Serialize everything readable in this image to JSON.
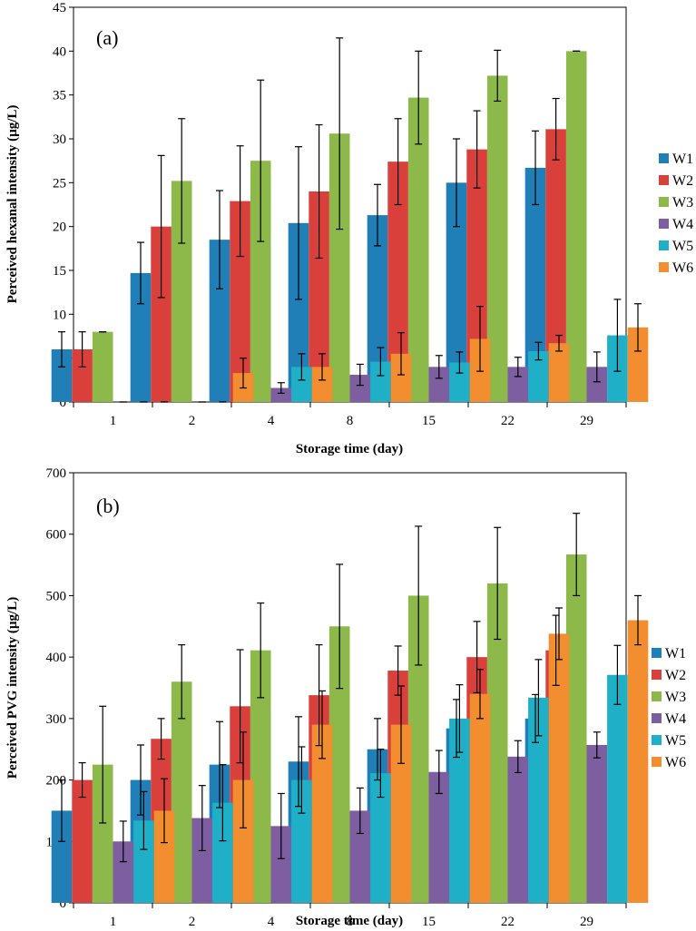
{
  "colors": {
    "W1": "#1f7fb6",
    "W2": "#d9403b",
    "W3": "#8db84a",
    "W4": "#7d5ea0",
    "W5": "#1fb0c7",
    "W6": "#f28e30"
  },
  "chart_data": [
    {
      "type": "bar",
      "panel_label": "(a)",
      "xlabel": "Storage time (day)",
      "ylabel": "Perceived  hexanal intensity (µg/L)",
      "ylim": [
        0,
        45
      ],
      "yticks": [
        0,
        5,
        10,
        15,
        20,
        25,
        30,
        35,
        40,
        45
      ],
      "categories": [
        "1",
        "2",
        "4",
        "8",
        "15",
        "22",
        "29"
      ],
      "legend_position": "right",
      "series": [
        {
          "name": "W1",
          "values": [
            6,
            14.7,
            18.5,
            20.4,
            21.3,
            25,
            26.7
          ],
          "errors": [
            2,
            3.5,
            5.6,
            8.7,
            3.5,
            5,
            4.2
          ]
        },
        {
          "name": "W2",
          "values": [
            6,
            20,
            22.9,
            24,
            27.4,
            28.8,
            31.1
          ],
          "errors": [
            2,
            8.1,
            6.3,
            7.6,
            4.9,
            4.4,
            3.5
          ]
        },
        {
          "name": "W3",
          "values": [
            8,
            25.2,
            27.5,
            30.6,
            34.7,
            37.2,
            40
          ],
          "errors": [
            0,
            7.1,
            9.2,
            10.9,
            5.3,
            2.9,
            0
          ]
        },
        {
          "name": "W4",
          "values": [
            0,
            0,
            1.6,
            3.1,
            4,
            4,
            4
          ],
          "errors": [
            0,
            0,
            0.6,
            1.2,
            1.3,
            1.1,
            1.7
          ]
        },
        {
          "name": "W5",
          "values": [
            0,
            0,
            4,
            4.6,
            4.5,
            5.8,
            7.6
          ],
          "errors": [
            0,
            0,
            1.5,
            1.6,
            1.2,
            1,
            4.1
          ]
        },
        {
          "name": "W6",
          "values": [
            0,
            3.3,
            4,
            5.5,
            7.2,
            6.7,
            8.5
          ],
          "errors": [
            0,
            1.7,
            1.5,
            2.4,
            3.7,
            0.9,
            2.7
          ]
        }
      ]
    },
    {
      "type": "bar",
      "panel_label": "(b)",
      "xlabel": "Storage time (day)",
      "ylabel": "Perceived  PVG intensity (µg/L)",
      "ylim": [
        0,
        700
      ],
      "yticks": [
        0,
        100,
        200,
        300,
        400,
        500,
        600,
        700
      ],
      "categories": [
        "1",
        "2",
        "4",
        "8",
        "15",
        "22",
        "29"
      ],
      "legend_position": "right",
      "series": [
        {
          "name": "W1",
          "values": [
            150,
            200,
            225,
            230,
            250,
            284,
            300
          ],
          "errors": [
            50,
            57,
            70,
            73,
            50,
            47,
            39
          ]
        },
        {
          "name": "W2",
          "values": [
            200,
            267,
            320,
            338,
            378,
            400,
            411
          ],
          "errors": [
            28,
            33,
            92,
            82,
            40,
            58,
            57
          ]
        },
        {
          "name": "W3",
          "values": [
            225,
            360,
            411,
            450,
            500,
            520,
            567
          ],
          "errors": [
            95,
            60,
            77,
            101,
            113,
            91,
            67
          ]
        },
        {
          "name": "W4",
          "values": [
            100,
            138,
            125,
            150,
            213,
            238,
            257
          ],
          "errors": [
            33,
            53,
            53,
            37,
            35,
            26,
            21
          ]
        },
        {
          "name": "W5",
          "values": [
            134,
            163,
            200,
            211,
            300,
            334,
            371
          ],
          "errors": [
            47,
            62,
            54,
            39,
            55,
            62,
            48
          ]
        },
        {
          "name": "W6",
          "values": [
            150,
            200,
            290,
            290,
            340,
            438,
            460
          ],
          "errors": [
            52,
            78,
            55,
            63,
            40,
            42,
            40
          ]
        }
      ]
    }
  ]
}
